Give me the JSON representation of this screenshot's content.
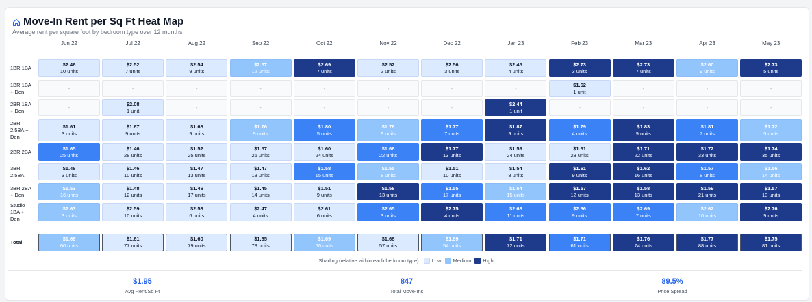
{
  "header": {
    "title": "Move-In Rent per Sq Ft Heat Map",
    "subtitle": "Average rent per square foot by bedroom type over 12 months",
    "icon": "home-icon"
  },
  "columns": [
    "Jun 22",
    "Jul 22",
    "Aug 22",
    "Sep 22",
    "Oct 22",
    "Nov 22",
    "Dec 22",
    "Jan 23",
    "Feb 23",
    "Mar 23",
    "Apr 23",
    "May 23"
  ],
  "rows": [
    {
      "label": "1BR 1BA",
      "cells": [
        {
          "value": "$2.46",
          "units": "10 units",
          "level": "low"
        },
        {
          "value": "$2.52",
          "units": "7 units",
          "level": "low"
        },
        {
          "value": "$2.54",
          "units": "9 units",
          "level": "low"
        },
        {
          "value": "$2.57",
          "units": "12 units",
          "level": "med"
        },
        {
          "value": "$2.69",
          "units": "7 units",
          "level": "top"
        },
        {
          "value": "$2.52",
          "units": "2 units",
          "level": "low"
        },
        {
          "value": "$2.56",
          "units": "3 units",
          "level": "low"
        },
        {
          "value": "$2.45",
          "units": "4 units",
          "level": "low"
        },
        {
          "value": "$2.73",
          "units": "3 units",
          "level": "top"
        },
        {
          "value": "$2.73",
          "units": "7 units",
          "level": "top"
        },
        {
          "value": "$2.60",
          "units": "9 units",
          "level": "med"
        },
        {
          "value": "$2.73",
          "units": "5 units",
          "level": "top"
        }
      ]
    },
    {
      "label": "1BR 1BA + Den",
      "cells": [
        {
          "value": "-",
          "units": "",
          "level": "empty"
        },
        {
          "value": "-",
          "units": "",
          "level": "empty"
        },
        {
          "value": "-",
          "units": "",
          "level": "empty"
        },
        {
          "value": "-",
          "units": "",
          "level": "empty"
        },
        {
          "value": "-",
          "units": "",
          "level": "empty"
        },
        {
          "value": "-",
          "units": "",
          "level": "empty"
        },
        {
          "value": "-",
          "units": "",
          "level": "empty"
        },
        {
          "value": "-",
          "units": "",
          "level": "empty"
        },
        {
          "value": "$1.62",
          "units": "1 unit",
          "level": "low"
        },
        {
          "value": "-",
          "units": "",
          "level": "empty"
        },
        {
          "value": "-",
          "units": "",
          "level": "empty"
        },
        {
          "value": "-",
          "units": "",
          "level": "empty"
        }
      ]
    },
    {
      "label": "2BR 1BA + Den",
      "cells": [
        {
          "value": "-",
          "units": "",
          "level": "empty"
        },
        {
          "value": "$2.08",
          "units": "1 unit",
          "level": "low"
        },
        {
          "value": "-",
          "units": "",
          "level": "empty"
        },
        {
          "value": "-",
          "units": "",
          "level": "empty"
        },
        {
          "value": "-",
          "units": "",
          "level": "empty"
        },
        {
          "value": "-",
          "units": "",
          "level": "empty"
        },
        {
          "value": "-",
          "units": "",
          "level": "empty"
        },
        {
          "value": "$2.44",
          "units": "1 unit",
          "level": "top"
        },
        {
          "value": "-",
          "units": "",
          "level": "empty"
        },
        {
          "value": "-",
          "units": "",
          "level": "empty"
        },
        {
          "value": "-",
          "units": "",
          "level": "empty"
        },
        {
          "value": "-",
          "units": "",
          "level": "empty"
        }
      ]
    },
    {
      "label": "2BR 2.5BA + Den",
      "cells": [
        {
          "value": "$1.61",
          "units": "3 units",
          "level": "low"
        },
        {
          "value": "$1.67",
          "units": "9 units",
          "level": "low"
        },
        {
          "value": "$1.68",
          "units": "9 units",
          "level": "low"
        },
        {
          "value": "$1.76",
          "units": "9 units",
          "level": "med"
        },
        {
          "value": "$1.80",
          "units": "5 units",
          "level": "hi"
        },
        {
          "value": "$1.76",
          "units": "9 units",
          "level": "med"
        },
        {
          "value": "$1.77",
          "units": "7 units",
          "level": "hi"
        },
        {
          "value": "$1.87",
          "units": "9 units",
          "level": "top"
        },
        {
          "value": "$1.79",
          "units": "4 units",
          "level": "hi"
        },
        {
          "value": "$1.83",
          "units": "9 units",
          "level": "top"
        },
        {
          "value": "$1.81",
          "units": "7 units",
          "level": "hi"
        },
        {
          "value": "$1.72",
          "units": "5 units",
          "level": "med"
        }
      ]
    },
    {
      "label": "2BR 2BA",
      "cells": [
        {
          "value": "$1.65",
          "units": "25 units",
          "level": "hi"
        },
        {
          "value": "$1.46",
          "units": "28 units",
          "level": "low"
        },
        {
          "value": "$1.52",
          "units": "25 units",
          "level": "low"
        },
        {
          "value": "$1.57",
          "units": "26 units",
          "level": "low"
        },
        {
          "value": "$1.60",
          "units": "24 units",
          "level": "low"
        },
        {
          "value": "$1.66",
          "units": "22 units",
          "level": "hi"
        },
        {
          "value": "$1.77",
          "units": "13 units",
          "level": "top"
        },
        {
          "value": "$1.59",
          "units": "24 units",
          "level": "low"
        },
        {
          "value": "$1.61",
          "units": "23 units",
          "level": "low"
        },
        {
          "value": "$1.71",
          "units": "22 units",
          "level": "top"
        },
        {
          "value": "$1.72",
          "units": "33 units",
          "level": "top"
        },
        {
          "value": "$1.74",
          "units": "35 units",
          "level": "top"
        }
      ]
    },
    {
      "label": "3BR 2.5BA",
      "cells": [
        {
          "value": "$1.48",
          "units": "3 units",
          "level": "low"
        },
        {
          "value": "$1.46",
          "units": "10 units",
          "level": "low"
        },
        {
          "value": "$1.47",
          "units": "13 units",
          "level": "low"
        },
        {
          "value": "$1.47",
          "units": "13 units",
          "level": "low"
        },
        {
          "value": "$1.58",
          "units": "15 units",
          "level": "hi"
        },
        {
          "value": "$1.55",
          "units": "8 units",
          "level": "med"
        },
        {
          "value": "$1.51",
          "units": "10 units",
          "level": "low"
        },
        {
          "value": "$1.54",
          "units": "8 units",
          "level": "low"
        },
        {
          "value": "$1.61",
          "units": "9 units",
          "level": "top"
        },
        {
          "value": "$1.62",
          "units": "16 units",
          "level": "top"
        },
        {
          "value": "$1.57",
          "units": "8 units",
          "level": "hi"
        },
        {
          "value": "$1.56",
          "units": "14 units",
          "level": "med"
        }
      ]
    },
    {
      "label": "3BR 2BA + Den",
      "cells": [
        {
          "value": "$1.53",
          "units": "16 units",
          "level": "med"
        },
        {
          "value": "$1.48",
          "units": "12 units",
          "level": "low"
        },
        {
          "value": "$1.46",
          "units": "17 units",
          "level": "low"
        },
        {
          "value": "$1.45",
          "units": "14 units",
          "level": "low"
        },
        {
          "value": "$1.51",
          "units": "9 units",
          "level": "low"
        },
        {
          "value": "$1.58",
          "units": "13 units",
          "level": "top"
        },
        {
          "value": "$1.55",
          "units": "17 units",
          "level": "hi"
        },
        {
          "value": "$1.54",
          "units": "15 units",
          "level": "med"
        },
        {
          "value": "$1.57",
          "units": "12 units",
          "level": "top"
        },
        {
          "value": "$1.58",
          "units": "13 units",
          "level": "top"
        },
        {
          "value": "$1.59",
          "units": "21 units",
          "level": "top"
        },
        {
          "value": "$1.57",
          "units": "13 units",
          "level": "top"
        }
      ]
    },
    {
      "label": "Studio 1BA + Den",
      "cells": [
        {
          "value": "$2.63",
          "units": "3 units",
          "level": "med"
        },
        {
          "value": "$2.59",
          "units": "10 units",
          "level": "low"
        },
        {
          "value": "$2.53",
          "units": "6 units",
          "level": "low"
        },
        {
          "value": "$2.47",
          "units": "4 units",
          "level": "low"
        },
        {
          "value": "$2.61",
          "units": "6 units",
          "level": "low"
        },
        {
          "value": "$2.65",
          "units": "3 units",
          "level": "hi"
        },
        {
          "value": "$2.75",
          "units": "4 units",
          "level": "top"
        },
        {
          "value": "$2.68",
          "units": "11 units",
          "level": "hi"
        },
        {
          "value": "$2.66",
          "units": "9 units",
          "level": "hi"
        },
        {
          "value": "$2.69",
          "units": "7 units",
          "level": "hi"
        },
        {
          "value": "$2.62",
          "units": "10 units",
          "level": "med"
        },
        {
          "value": "$2.76",
          "units": "9 units",
          "level": "top"
        }
      ]
    }
  ],
  "total": {
    "label": "Total",
    "cells": [
      {
        "value": "$1.69",
        "units": "60 units",
        "level": "med"
      },
      {
        "value": "$1.61",
        "units": "77 units",
        "level": "low"
      },
      {
        "value": "$1.60",
        "units": "79 units",
        "level": "low"
      },
      {
        "value": "$1.65",
        "units": "78 units",
        "level": "low"
      },
      {
        "value": "$1.69",
        "units": "66 units",
        "level": "med"
      },
      {
        "value": "$1.68",
        "units": "57 units",
        "level": "low"
      },
      {
        "value": "$1.69",
        "units": "54 units",
        "level": "med"
      },
      {
        "value": "$1.71",
        "units": "72 units",
        "level": "top"
      },
      {
        "value": "$1.71",
        "units": "61 units",
        "level": "hi"
      },
      {
        "value": "$1.76",
        "units": "74 units",
        "level": "top"
      },
      {
        "value": "$1.77",
        "units": "88 units",
        "level": "top"
      },
      {
        "value": "$1.75",
        "units": "81 units",
        "level": "top"
      }
    ]
  },
  "legend": {
    "title": "Shading (relative within each bedroom type):",
    "items": [
      {
        "label": "Low",
        "color": "#dbeafe"
      },
      {
        "label": "Medium",
        "color": "#93c5fd"
      },
      {
        "label": "High",
        "color": "#1e3a8a"
      }
    ]
  },
  "stats": [
    {
      "value": "$1.95",
      "label": "Avg Rent/Sq Ft"
    },
    {
      "value": "847",
      "label": "Total Move-Ins"
    },
    {
      "value": "89.5%",
      "label": "Price Spread"
    }
  ],
  "colors": {
    "accent": "#2563eb",
    "top": "#1e3a8a",
    "high": "#3b82f6",
    "medium": "#93c5fd",
    "low": "#dbeafe"
  }
}
